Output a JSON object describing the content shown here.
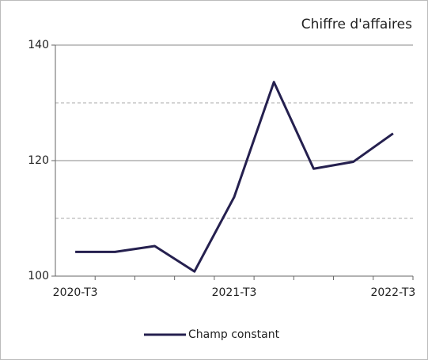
{
  "chart_data": {
    "type": "line",
    "title": "Chiffre d'affaires",
    "categories": [
      "2020-T3",
      null,
      null,
      null,
      "2021-T3",
      null,
      null,
      null,
      "2022-T3"
    ],
    "series": [
      {
        "name": "Champ constant",
        "color": "#25204f",
        "values": [
          104.2,
          104.2,
          105.2,
          100.8,
          113.7,
          133.6,
          118.6,
          119.8,
          124.7
        ]
      }
    ],
    "ylim": [
      100,
      140
    ],
    "yticks": [
      100,
      120,
      140
    ],
    "minor_yticks": [
      110,
      130
    ],
    "grid": true,
    "legend": "bottom"
  }
}
